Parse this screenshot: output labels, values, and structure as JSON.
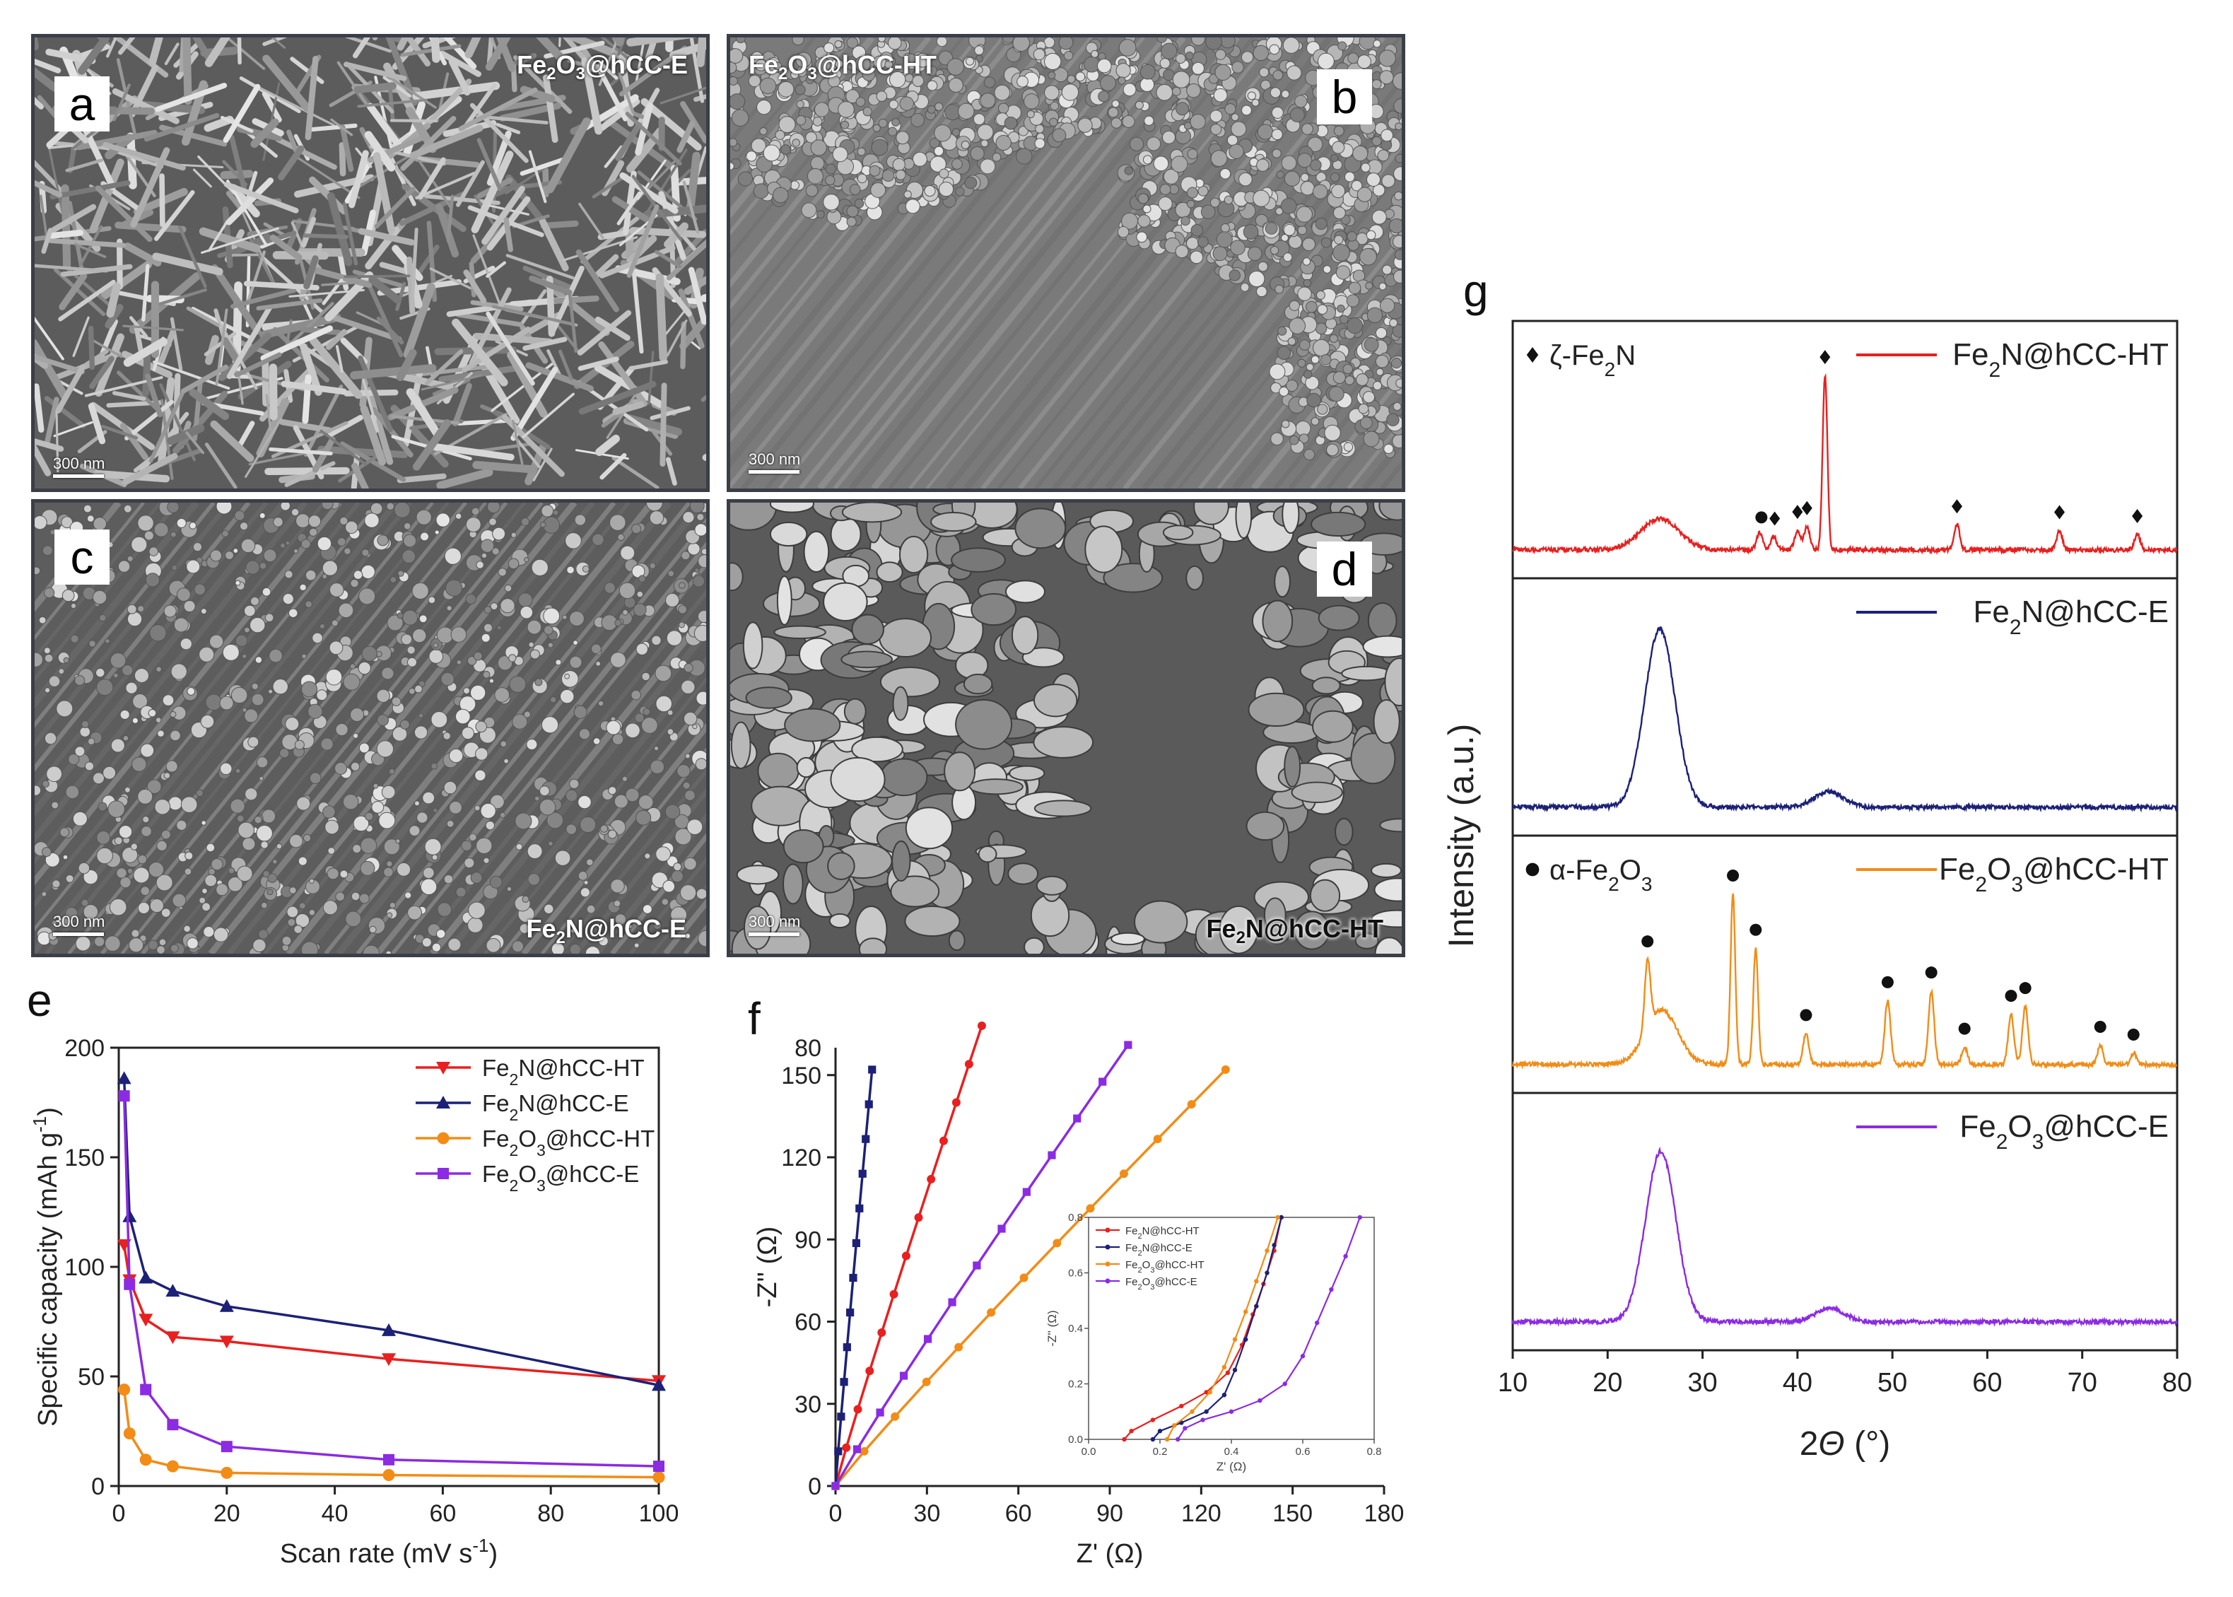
{
  "panels": {
    "a": {
      "letter": "a",
      "label": "Fe2O3@hCC-E",
      "label_html": [
        "Fe",
        "2",
        "O",
        "3",
        "@hCC-E"
      ],
      "scale": "300 nm"
    },
    "b": {
      "letter": "b",
      "label": "Fe2O3@hCC-HT",
      "label_html": [
        "Fe",
        "2",
        "O",
        "3",
        "@hCC-HT"
      ],
      "scale": "300 nm"
    },
    "c": {
      "letter": "c",
      "label": "Fe2N@hCC-E",
      "label_html": [
        "Fe",
        "2",
        "N@hCC-E"
      ],
      "scale": "300 nm"
    },
    "d": {
      "letter": "d",
      "label": "Fe2N@hCC-HT",
      "label_html": [
        "Fe",
        "2",
        "N@hCC-HT"
      ],
      "scale": "300 nm"
    },
    "e": {
      "letter": "e"
    },
    "f": {
      "letter": "f"
    },
    "g": {
      "letter": "g"
    }
  },
  "colors": {
    "red": "#e8201f",
    "navy": "#1c2177",
    "orange": "#f28c16",
    "purple": "#8b2be2"
  },
  "chart_data": [
    {
      "id": "e",
      "type": "line",
      "xlabel": "Scan rate (mV s",
      "xlabel_sup": "-1",
      "xlabel_end": ")",
      "ylabel": "Specific capacity (mAh g",
      "ylabel_sup": "-1",
      "ylabel_end": ")",
      "xlim": [
        0,
        100
      ],
      "ylim": [
        0,
        200
      ],
      "xticks": [
        0,
        20,
        40,
        60,
        80,
        100
      ],
      "yticks": [
        0,
        50,
        100,
        150,
        200
      ],
      "x": [
        1,
        2,
        5,
        10,
        20,
        50,
        100
      ],
      "series": [
        {
          "name": "Fe2N@hCC-HT",
          "legend": [
            "Fe",
            "2",
            "N@hCC-HT"
          ],
          "color": "#e8201f",
          "marker": "tri-down",
          "values": [
            110,
            94,
            76,
            68,
            66,
            58,
            48
          ]
        },
        {
          "name": "Fe2N@hCC-E",
          "legend": [
            "Fe",
            "2",
            "N@hCC-E"
          ],
          "color": "#1c2177",
          "marker": "tri-up",
          "values": [
            186,
            123,
            95,
            89,
            82,
            71,
            46
          ]
        },
        {
          "name": "Fe2O3@hCC-HT",
          "legend": [
            "Fe",
            "2",
            "O",
            "3",
            "@hCC-HT"
          ],
          "color": "#f28c16",
          "marker": "circle",
          "values": [
            44,
            24,
            12,
            9,
            6,
            5,
            4
          ]
        },
        {
          "name": "Fe2O3@hCC-E",
          "legend": [
            "Fe",
            "2",
            "O",
            "3",
            "@hCC-E"
          ],
          "color": "#8b2be2",
          "marker": "square",
          "values": [
            178,
            92,
            44,
            28,
            18,
            12,
            9
          ]
        }
      ]
    },
    {
      "id": "f",
      "type": "scatter",
      "xlabel": "Z' (Ω)",
      "ylabel": "-Z'' (Ω)",
      "xlim": [
        0,
        180
      ],
      "ylim": [
        0,
        160
      ],
      "xticks": [
        0,
        30,
        60,
        90,
        120,
        150,
        180
      ],
      "yticks": [
        0,
        30,
        60,
        90,
        120,
        150
      ],
      "yaxis_right_ticks": [
        0,
        20,
        40,
        60,
        80
      ],
      "series": [
        {
          "name": "Fe2N@hCC-HT",
          "color": "#e8201f",
          "x_end": 48,
          "y_end": 168
        },
        {
          "name": "Fe2N@hCC-E",
          "color": "#1c2177",
          "x_end": 12,
          "y_end": 152
        },
        {
          "name": "Fe2O3@hCC-HT",
          "color": "#f28c16",
          "x_end": 128,
          "y_end": 152
        },
        {
          "name": "Fe2O3@hCC-E",
          "color": "#8b2be2",
          "x_end": 96,
          "y_end": 161
        }
      ],
      "inset": {
        "xlabel": "Z' (Ω)",
        "ylabel": "-Z'' (Ω)",
        "xlim": [
          0,
          0.8
        ],
        "ylim": [
          0,
          0.8
        ],
        "xticks": [
          "0.0",
          "0.2",
          "0.4",
          "0.6",
          "0.8"
        ],
        "yticks": [
          "0.0",
          "0.2",
          "0.4",
          "0.6",
          "0.8"
        ],
        "legend": [
          {
            "name": "Fe2N@hCC-HT",
            "parts": [
              "Fe",
              "2",
              "N@hCC-HT"
            ],
            "color": "#e8201f"
          },
          {
            "name": "Fe2N@hCC-E",
            "parts": [
              "Fe",
              "2",
              "N@hCC-E"
            ],
            "color": "#1c2177"
          },
          {
            "name": "Fe2O3@hCC-HT",
            "parts": [
              "Fe",
              "2",
              "O",
              "3",
              "@hCC-HT"
            ],
            "color": "#f28c16"
          },
          {
            "name": "Fe2O3@hCC-E",
            "parts": [
              "Fe",
              "2",
              "O",
              "3",
              "@hCC-E"
            ],
            "color": "#8b2be2"
          }
        ],
        "curves": [
          {
            "color": "#e8201f",
            "points": [
              [
                0.1,
                0.0
              ],
              [
                0.12,
                0.03
              ],
              [
                0.18,
                0.07
              ],
              [
                0.26,
                0.12
              ],
              [
                0.33,
                0.17
              ],
              [
                0.39,
                0.24
              ],
              [
                0.43,
                0.34
              ],
              [
                0.46,
                0.45
              ],
              [
                0.49,
                0.56
              ],
              [
                0.52,
                0.68
              ],
              [
                0.54,
                0.8
              ]
            ]
          },
          {
            "color": "#1c2177",
            "points": [
              [
                0.18,
                0.0
              ],
              [
                0.2,
                0.03
              ],
              [
                0.26,
                0.06
              ],
              [
                0.33,
                0.1
              ],
              [
                0.38,
                0.16
              ],
              [
                0.41,
                0.25
              ],
              [
                0.44,
                0.36
              ],
              [
                0.47,
                0.48
              ],
              [
                0.5,
                0.6
              ],
              [
                0.52,
                0.7
              ],
              [
                0.54,
                0.8
              ]
            ]
          },
          {
            "color": "#f28c16",
            "points": [
              [
                0.22,
                0.0
              ],
              [
                0.24,
                0.05
              ],
              [
                0.29,
                0.1
              ],
              [
                0.34,
                0.17
              ],
              [
                0.38,
                0.26
              ],
              [
                0.41,
                0.36
              ],
              [
                0.44,
                0.46
              ],
              [
                0.47,
                0.57
              ],
              [
                0.5,
                0.68
              ],
              [
                0.53,
                0.8
              ]
            ]
          },
          {
            "color": "#8b2be2",
            "points": [
              [
                0.25,
                0.0
              ],
              [
                0.27,
                0.04
              ],
              [
                0.32,
                0.07
              ],
              [
                0.4,
                0.1
              ],
              [
                0.48,
                0.14
              ],
              [
                0.55,
                0.2
              ],
              [
                0.6,
                0.3
              ],
              [
                0.64,
                0.42
              ],
              [
                0.68,
                0.54
              ],
              [
                0.72,
                0.66
              ],
              [
                0.76,
                0.8
              ]
            ]
          }
        ]
      }
    },
    {
      "id": "g",
      "type": "line",
      "xlabel": "2Θ (°)",
      "xlabel_parts": [
        "2",
        "Θ",
        " (°)"
      ],
      "ylabel": "Intensity (a.u.)",
      "xlim": [
        10,
        80
      ],
      "xticks": [
        10,
        20,
        30,
        40,
        50,
        60,
        70,
        80
      ],
      "series": [
        {
          "name": "Fe2N@hCC-HT",
          "parts": [
            "Fe",
            "2",
            "N@hCC-HT"
          ],
          "color": "#e8201f",
          "broad": [
            [
              25.5,
              0.16,
              2.0
            ]
          ],
          "sharp": [
            [
              36.0,
              0.09,
              0.3
            ],
            [
              37.5,
              0.07,
              0.3
            ],
            [
              40.0,
              0.1,
              0.3
            ],
            [
              41.0,
              0.12,
              0.3
            ],
            [
              42.9,
              0.9,
              0.25
            ],
            [
              56.8,
              0.13,
              0.3
            ],
            [
              67.6,
              0.1,
              0.3
            ],
            [
              75.8,
              0.08,
              0.3
            ]
          ],
          "markers": [
            [
              36.2,
              "circle"
            ],
            [
              37.6,
              "diamond"
            ],
            [
              40.0,
              "diamond"
            ],
            [
              41.0,
              "diamond"
            ],
            [
              42.9,
              "diamond"
            ],
            [
              56.8,
              "diamond"
            ],
            [
              67.6,
              "diamond"
            ],
            [
              75.8,
              "diamond"
            ]
          ],
          "phase_label": [
            "ζ-Fe",
            "2",
            "N"
          ]
        },
        {
          "name": "Fe2N@hCC-E",
          "parts": [
            "Fe",
            "2",
            "N@hCC-E"
          ],
          "color": "#1c2177",
          "broad": [
            [
              25.5,
              0.92,
              1.6
            ],
            [
              43.3,
              0.08,
              1.5
            ]
          ],
          "sharp": [],
          "markers": []
        },
        {
          "name": "Fe2O3@hCC-HT",
          "parts": [
            "Fe",
            "2",
            "O",
            "3",
            "@hCC-HT"
          ],
          "color": "#f28c16",
          "broad": [
            [
              25.7,
              0.28,
              1.7
            ]
          ],
          "sharp": [
            [
              24.2,
              0.35,
              0.3
            ],
            [
              33.2,
              0.88,
              0.25
            ],
            [
              35.6,
              0.6,
              0.25
            ],
            [
              40.9,
              0.16,
              0.3
            ],
            [
              49.5,
              0.33,
              0.3
            ],
            [
              54.1,
              0.38,
              0.3
            ],
            [
              57.6,
              0.09,
              0.3
            ],
            [
              62.5,
              0.26,
              0.3
            ],
            [
              64.0,
              0.3,
              0.3
            ],
            [
              71.9,
              0.1,
              0.3
            ],
            [
              75.4,
              0.06,
              0.3
            ]
          ],
          "markers": [
            [
              24.2,
              "circle"
            ],
            [
              33.2,
              "circle"
            ],
            [
              35.6,
              "circle"
            ],
            [
              40.9,
              "circle"
            ],
            [
              49.5,
              "circle"
            ],
            [
              54.1,
              "circle"
            ],
            [
              57.6,
              "circle"
            ],
            [
              62.5,
              "circle"
            ],
            [
              64.0,
              "circle"
            ],
            [
              71.9,
              "circle"
            ],
            [
              75.4,
              "circle"
            ]
          ],
          "phase_label": [
            "α-Fe",
            "2",
            "O",
            "3"
          ]
        },
        {
          "name": "Fe2O3@hCC-E",
          "parts": [
            "Fe",
            "2",
            "O",
            "3",
            "@hCC-E"
          ],
          "color": "#8b2be2",
          "broad": [
            [
              25.6,
              0.88,
              1.6
            ],
            [
              43.4,
              0.07,
              1.5
            ]
          ],
          "sharp": [],
          "markers": []
        }
      ]
    }
  ]
}
